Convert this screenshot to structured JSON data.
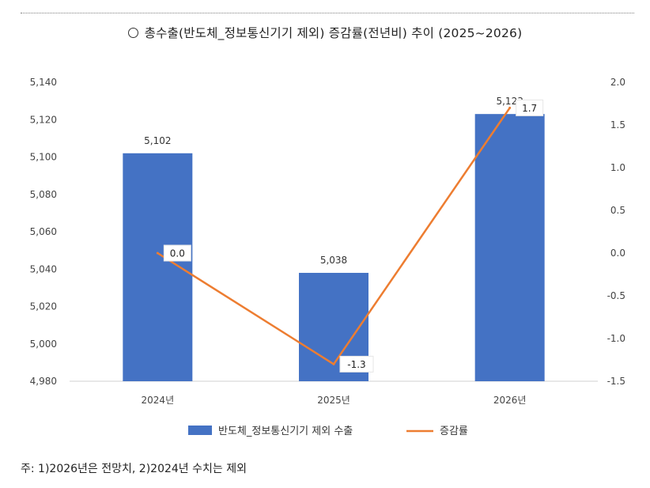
{
  "title": "총수출(반도체_정보통신기기 제외) 증감률(전년비) 추이 (2025~2026)",
  "note": "주: 1)2026년은 전망치, 2)2024년 수치는 제외",
  "colors": {
    "bar": "#4472c4",
    "line": "#ed7d31"
  },
  "chart_data": {
    "type": "bar",
    "categories": [
      "2024년",
      "2025년",
      "2026년"
    ],
    "series": [
      {
        "name": "반도체_정보통신기기 제외 수출",
        "type": "bar",
        "axis": "left",
        "values": [
          5102,
          5038,
          5123
        ],
        "data_labels": [
          "5,102",
          "5,038",
          "5,123"
        ]
      },
      {
        "name": "증감률",
        "type": "line",
        "axis": "right",
        "values": [
          0.0,
          -1.3,
          1.7
        ],
        "data_labels": [
          "0.0",
          "-1.3",
          "1.7"
        ]
      }
    ],
    "y_left": {
      "min": 4980,
      "max": 5140,
      "step": 20,
      "ticks": [
        "4,980",
        "5,000",
        "5,020",
        "5,040",
        "5,060",
        "5,080",
        "5,100",
        "5,120",
        "5,140"
      ]
    },
    "y_right": {
      "min": -1.5,
      "max": 2.0,
      "step": 0.5,
      "ticks": [
        "-1.5",
        "-1.0",
        "-0.5",
        "0.0",
        "0.5",
        "1.0",
        "1.5",
        "2.0"
      ]
    },
    "grid": false,
    "legend_position": "bottom"
  }
}
